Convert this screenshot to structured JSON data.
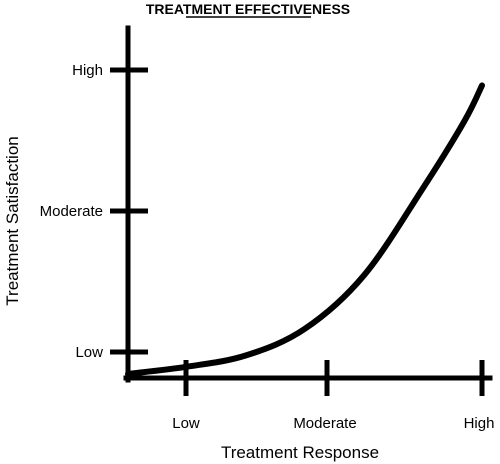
{
  "chart_data": {
    "type": "line",
    "title": "TREATMENT EFFECTIVENESS",
    "xlabel": "Treatment Response",
    "ylabel": "Treatment Satisfaction",
    "x_ticks": [
      "Low",
      "Moderate",
      "High"
    ],
    "y_ticks": [
      "Low",
      "Moderate",
      "High"
    ],
    "xlim": [
      0,
      3
    ],
    "ylim": [
      0,
      3
    ],
    "grid": false,
    "legend": "none",
    "series": [
      {
        "x": [
          0,
          0.5,
          1.0,
          1.5,
          2.0,
          2.5,
          2.85,
          3.0
        ],
        "y": [
          0.04,
          0.11,
          0.22,
          0.48,
          1.0,
          1.85,
          2.5,
          2.85
        ],
        "color": "#000000"
      }
    ]
  }
}
